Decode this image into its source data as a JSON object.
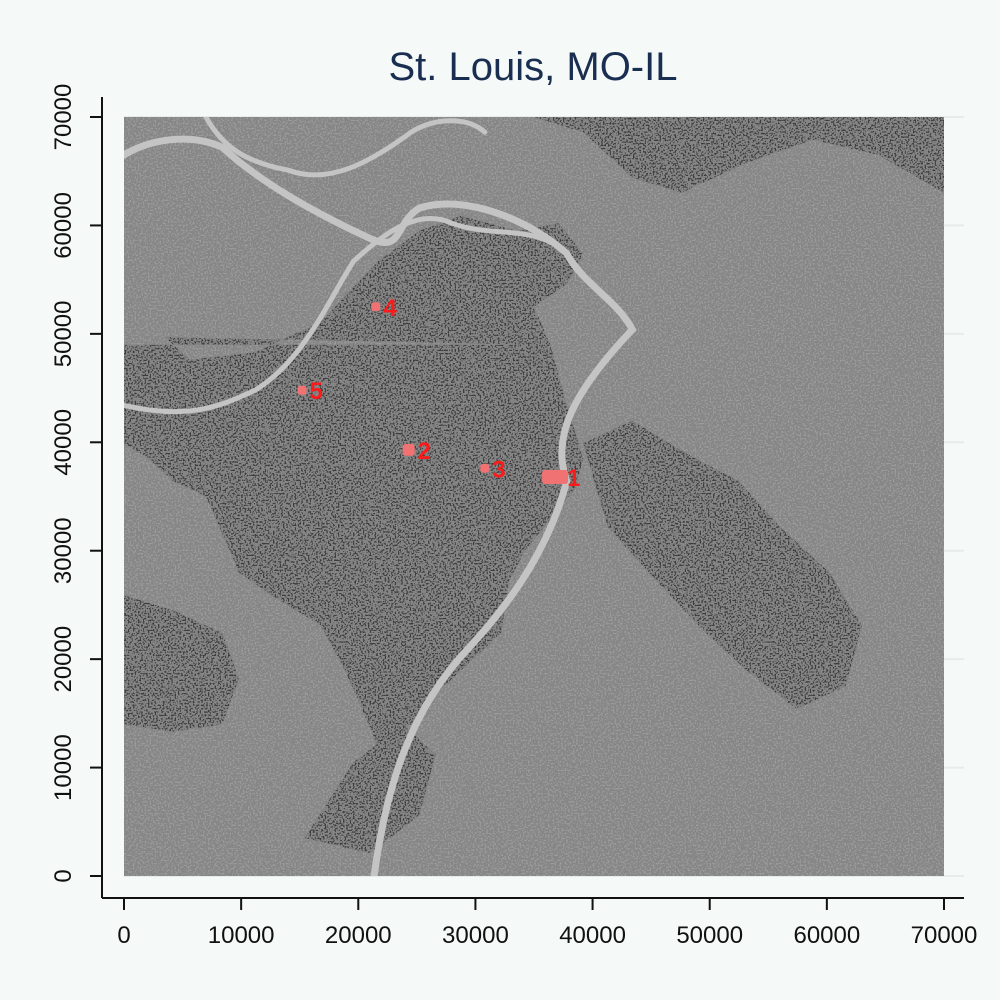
{
  "colors": {
    "background": "#f5f9f7",
    "title": "#1a2e52",
    "built_up": "#3c3c3c",
    "undeveloped": "#9b9b9b",
    "river": "#c4c4c4",
    "highlight": "#f07272",
    "label": "#ff1a1a",
    "gridline": "#e6ecea",
    "axis": "#111111"
  },
  "chart_data": {
    "type": "scatter",
    "title": "St. Louis, MO-IL",
    "xlabel": "",
    "ylabel": "",
    "xlim": [
      0,
      70000
    ],
    "ylim": [
      0,
      70000
    ],
    "x_ticks": [
      0,
      10000,
      20000,
      30000,
      40000,
      50000,
      60000,
      70000
    ],
    "y_ticks": [
      0,
      10000,
      20000,
      30000,
      40000,
      50000,
      60000,
      70000
    ],
    "x_tick_labels": [
      "0",
      "10000",
      "20000",
      "30000",
      "40000",
      "50000",
      "60000",
      "70000"
    ],
    "y_tick_labels": [
      "0",
      "10000",
      "20000",
      "30000",
      "40000",
      "50000",
      "60000",
      "70000"
    ],
    "grid": true,
    "points": [
      {
        "label": "1",
        "x": 36800,
        "y": 36800
      },
      {
        "label": "2",
        "x": 24300,
        "y": 39300
      },
      {
        "label": "3",
        "x": 30800,
        "y": 37600
      },
      {
        "label": "4",
        "x": 21500,
        "y": 52500
      },
      {
        "label": "5",
        "x": 15200,
        "y": 44800
      }
    ]
  }
}
